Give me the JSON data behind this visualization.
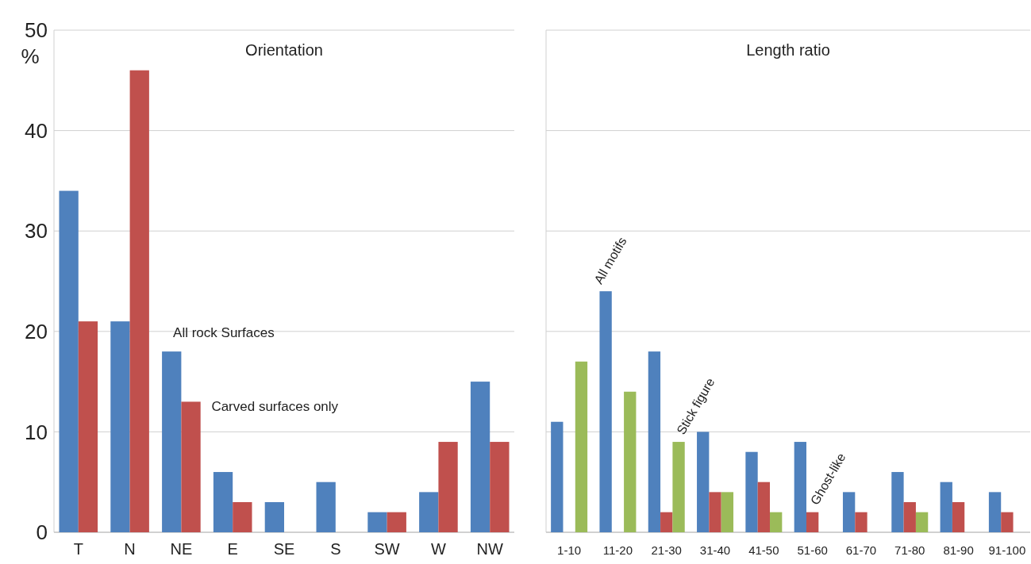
{
  "chart_data": [
    {
      "type": "bar",
      "title": "Orientation",
      "ylabel": "%",
      "categories": [
        "T",
        "N",
        "NE",
        "E",
        "SE",
        "S",
        "SW",
        "W",
        "NW"
      ],
      "series": [
        {
          "name": "All rock Surfaces",
          "color": "#4f81bd",
          "values": [
            34,
            21,
            18,
            6,
            3,
            5,
            2,
            4,
            15
          ]
        },
        {
          "name": "Carved surfaces only",
          "color": "#c0504d",
          "values": [
            21,
            46,
            13,
            3,
            0,
            0,
            2,
            9,
            9
          ]
        }
      ],
      "ylim": [
        0,
        50
      ],
      "yticks": [
        0,
        10,
        20,
        30,
        40,
        50
      ],
      "grid": "y"
    },
    {
      "type": "bar",
      "title": "Length ratio",
      "categories": [
        "1-10",
        "11-20",
        "21-30",
        "31-40",
        "41-50",
        "51-60",
        "61-70",
        "71-80",
        "81-90",
        "91-100"
      ],
      "series": [
        {
          "name": "All motifs",
          "color": "#4f81bd",
          "values": [
            11,
            24,
            18,
            10,
            8,
            9,
            4,
            6,
            5,
            4
          ]
        },
        {
          "name": "Ghost-like",
          "color": "#c0504d",
          "values": [
            0,
            0,
            2,
            4,
            5,
            2,
            2,
            3,
            3,
            2
          ]
        },
        {
          "name": "Stick figure",
          "color": "#9bbb59",
          "values": [
            17,
            14,
            9,
            4,
            2,
            0,
            0,
            2,
            0,
            0
          ]
        }
      ],
      "ylim": [
        0,
        50
      ],
      "yticks": [
        0,
        10,
        20,
        30,
        40,
        50
      ],
      "grid": "y",
      "tick_labels": "x"
    }
  ]
}
